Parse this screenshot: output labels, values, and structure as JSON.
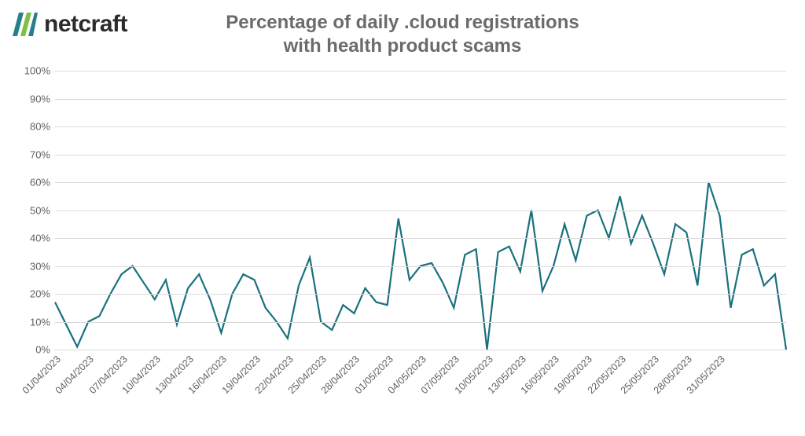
{
  "logo": {
    "brand": "netcraft"
  },
  "chart": {
    "type": "line",
    "title_line1": "Percentage of daily .cloud registrations",
    "title_line2": "with health product scams",
    "title_fontsize": 24,
    "title_color": "#6b6b6b",
    "background_color": "#ffffff",
    "grid_color": "#d9d9d9",
    "axis_text_color": "#606060",
    "line_color": "#18717e",
    "line_width": 2.2,
    "ylim": [
      0,
      100
    ],
    "ytick_step": 10,
    "y_ticks": [
      0,
      10,
      20,
      30,
      40,
      50,
      60,
      70,
      80,
      90,
      100
    ],
    "y_tick_suffix": "%",
    "x_labels": [
      "01/04/2023",
      "04/04/2023",
      "07/04/2023",
      "10/04/2023",
      "13/04/2023",
      "16/04/2023",
      "19/04/2023",
      "22/04/2023",
      "25/04/2023",
      "28/04/2023",
      "01/05/2023",
      "04/05/2023",
      "07/05/2023",
      "10/05/2023",
      "13/05/2023",
      "16/05/2023",
      "19/05/2023",
      "22/05/2023",
      "25/05/2023",
      "28/05/2023",
      "31/05/2023"
    ],
    "data": [
      {
        "i": 0,
        "v": 17
      },
      {
        "i": 1,
        "v": 9
      },
      {
        "i": 2,
        "v": 1
      },
      {
        "i": 3,
        "v": 10
      },
      {
        "i": 4,
        "v": 12
      },
      {
        "i": 5,
        "v": 20
      },
      {
        "i": 6,
        "v": 27
      },
      {
        "i": 7,
        "v": 30
      },
      {
        "i": 8,
        "v": 24
      },
      {
        "i": 9,
        "v": 18
      },
      {
        "i": 10,
        "v": 25
      },
      {
        "i": 11,
        "v": 9
      },
      {
        "i": 12,
        "v": 22
      },
      {
        "i": 13,
        "v": 27
      },
      {
        "i": 14,
        "v": 18
      },
      {
        "i": 15,
        "v": 6
      },
      {
        "i": 16,
        "v": 20
      },
      {
        "i": 17,
        "v": 27
      },
      {
        "i": 18,
        "v": 25
      },
      {
        "i": 19,
        "v": 15
      },
      {
        "i": 20,
        "v": 10
      },
      {
        "i": 21,
        "v": 4
      },
      {
        "i": 22,
        "v": 23
      },
      {
        "i": 23,
        "v": 33
      },
      {
        "i": 24,
        "v": 10
      },
      {
        "i": 25,
        "v": 7
      },
      {
        "i": 26,
        "v": 16
      },
      {
        "i": 27,
        "v": 13
      },
      {
        "i": 28,
        "v": 22
      },
      {
        "i": 29,
        "v": 17
      },
      {
        "i": 30,
        "v": 16
      },
      {
        "i": 31,
        "v": 47
      },
      {
        "i": 32,
        "v": 25
      },
      {
        "i": 33,
        "v": 30
      },
      {
        "i": 34,
        "v": 31
      },
      {
        "i": 35,
        "v": 24
      },
      {
        "i": 36,
        "v": 15
      },
      {
        "i": 37,
        "v": 34
      },
      {
        "i": 38,
        "v": 36
      },
      {
        "i": 39,
        "v": 0
      },
      {
        "i": 40,
        "v": 35
      },
      {
        "i": 41,
        "v": 37
      },
      {
        "i": 42,
        "v": 28
      },
      {
        "i": 43,
        "v": 50
      },
      {
        "i": 44,
        "v": 21
      },
      {
        "i": 45,
        "v": 30
      },
      {
        "i": 46,
        "v": 45
      },
      {
        "i": 47,
        "v": 32
      },
      {
        "i": 48,
        "v": 48
      },
      {
        "i": 49,
        "v": 50
      },
      {
        "i": 50,
        "v": 40
      },
      {
        "i": 51,
        "v": 55
      },
      {
        "i": 52,
        "v": 38
      },
      {
        "i": 53,
        "v": 48
      },
      {
        "i": 54,
        "v": 38
      },
      {
        "i": 55,
        "v": 27
      },
      {
        "i": 56,
        "v": 45
      },
      {
        "i": 57,
        "v": 42
      },
      {
        "i": 58,
        "v": 23
      },
      {
        "i": 59,
        "v": 60
      },
      {
        "i": 60,
        "v": 48
      },
      {
        "i": 61,
        "v": 15
      },
      {
        "i": 62,
        "v": 34
      },
      {
        "i": 63,
        "v": 36
      },
      {
        "i": 64,
        "v": 23
      },
      {
        "i": 65,
        "v": 27
      },
      {
        "i": 66,
        "v": 0
      }
    ],
    "x_label_step": 3,
    "x_label_fontsize": 12.5,
    "y_label_fontsize": 13,
    "logo_colors": {
      "teal": "#277f8a",
      "green": "#7cc143"
    }
  }
}
